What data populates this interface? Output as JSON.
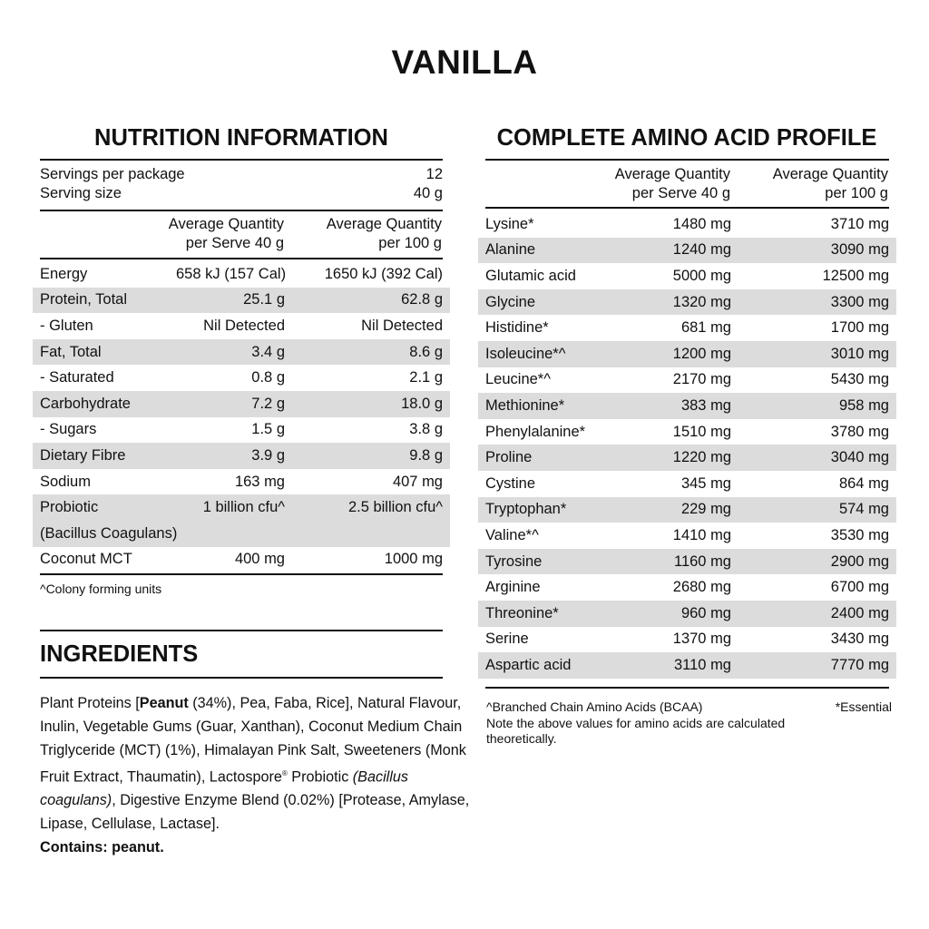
{
  "title": "VANILLA",
  "nutrition": {
    "heading": "NUTRITION INFORMATION",
    "servings_label": "Servings per package",
    "servings_value": "12",
    "serving_size_label": "Serving size",
    "serving_size_value": "40 g",
    "col1_header": [
      "Average Quantity",
      "per Serve 40 g"
    ],
    "col2_header": [
      "Average Quantity",
      "per 100 g"
    ],
    "rows": [
      {
        "name": "Energy",
        "per_serve": "658 kJ (157 Cal)",
        "per_100g": "1650 kJ (392 Cal)",
        "shaded": false
      },
      {
        "name": "Protein, Total",
        "per_serve": "25.1 g",
        "per_100g": "62.8 g",
        "shaded": true
      },
      {
        "name": "- Gluten",
        "per_serve": "Nil Detected",
        "per_100g": "Nil Detected",
        "shaded": false
      },
      {
        "name": "Fat, Total",
        "per_serve": "3.4 g",
        "per_100g": "8.6 g",
        "shaded": true
      },
      {
        "name": "- Saturated",
        "per_serve": "0.8 g",
        "per_100g": "2.1 g",
        "shaded": false
      },
      {
        "name": "Carbohydrate",
        "per_serve": "7.2 g",
        "per_100g": "18.0 g",
        "shaded": true
      },
      {
        "name": "- Sugars",
        "per_serve": "1.5 g",
        "per_100g": "3.8 g",
        "shaded": false
      },
      {
        "name": "Dietary Fibre",
        "per_serve": "3.9 g",
        "per_100g": "9.8 g",
        "shaded": true
      },
      {
        "name": "Sodium",
        "per_serve": "163 mg",
        "per_100g": "407 mg",
        "shaded": false
      },
      {
        "name": "Probiotic",
        "per_serve": "1 billion cfu^",
        "per_100g": "2.5 billion cfu^",
        "shaded": true
      },
      {
        "name": "(Bacillus Coagulans)",
        "per_serve": "",
        "per_100g": "",
        "shaded": true
      },
      {
        "name": "Coconut MCT",
        "per_serve": "400 mg",
        "per_100g": "1000 mg",
        "shaded": false
      }
    ],
    "footnote": "^Colony forming units"
  },
  "ingredients": {
    "heading": "INGREDIENTS",
    "segments": [
      {
        "text": "Plant Proteins [",
        "style": "normal"
      },
      {
        "text": "Peanut",
        "style": "bold"
      },
      {
        "text": " (34%), Pea, Faba, Rice], Natural Flavour, Inulin, Vegetable Gums (Guar, Xanthan), Coconut Medium Chain Triglyceride (MCT) (1%), Himalayan Pink Salt, Sweeteners (Monk Fruit Extract, Thaumatin), Lactospore",
        "style": "normal"
      },
      {
        "text": "®",
        "style": "sup"
      },
      {
        "text": " Probiotic ",
        "style": "normal"
      },
      {
        "text": "(Bacillus coagulans)",
        "style": "italic"
      },
      {
        "text": ", Digestive Enzyme Blend (0.02%) [Protease, Amylase, Lipase, Cellulase, Lactase].",
        "style": "normal"
      }
    ],
    "contains": "Contains: peanut."
  },
  "amino": {
    "heading": "COMPLETE AMINO ACID PROFILE",
    "col1_header": [
      "Average Quantity",
      "per Serve 40 g"
    ],
    "col2_header": [
      "Average Quantity",
      "per 100 g"
    ],
    "rows": [
      {
        "name": "Lysine*",
        "per_serve": "1480 mg",
        "per_100g": "3710 mg"
      },
      {
        "name": "Alanine",
        "per_serve": "1240 mg",
        "per_100g": "3090 mg"
      },
      {
        "name": "Glutamic acid",
        "per_serve": "5000 mg",
        "per_100g": "12500 mg"
      },
      {
        "name": "Glycine",
        "per_serve": "1320 mg",
        "per_100g": "3300 mg"
      },
      {
        "name": "Histidine*",
        "per_serve": "681 mg",
        "per_100g": "1700 mg"
      },
      {
        "name": "Isoleucine*^",
        "per_serve": "1200 mg",
        "per_100g": "3010 mg"
      },
      {
        "name": "Leucine*^",
        "per_serve": "2170 mg",
        "per_100g": "5430 mg"
      },
      {
        "name": "Methionine*",
        "per_serve": "383 mg",
        "per_100g": "958 mg"
      },
      {
        "name": "Phenylalanine*",
        "per_serve": "1510 mg",
        "per_100g": "3780 mg"
      },
      {
        "name": "Proline",
        "per_serve": "1220 mg",
        "per_100g": "3040 mg"
      },
      {
        "name": "Cystine",
        "per_serve": "345 mg",
        "per_100g": "864 mg"
      },
      {
        "name": "Tryptophan*",
        "per_serve": "229 mg",
        "per_100g": "574 mg"
      },
      {
        "name": "Valine*^",
        "per_serve": "1410 mg",
        "per_100g": "3530 mg"
      },
      {
        "name": "Tyrosine",
        "per_serve": "1160 mg",
        "per_100g": "2900 mg"
      },
      {
        "name": "Arginine",
        "per_serve": "2680 mg",
        "per_100g": "6700 mg"
      },
      {
        "name": "Threonine*",
        "per_serve": "960 mg",
        "per_100g": "2400 mg"
      },
      {
        "name": "Serine",
        "per_serve": "1370 mg",
        "per_100g": "3430 mg"
      },
      {
        "name": "Aspartic acid",
        "per_serve": "3110 mg",
        "per_100g": "7770 mg"
      }
    ],
    "footnote_bcaa": "^Branched Chain Amino Acids (BCAA)",
    "footnote_essential": "*Essential",
    "note": "Note the above values for amino acids are calculated theoretically."
  },
  "colors": {
    "row_shade": "#dcdcdc",
    "text": "#111111"
  }
}
